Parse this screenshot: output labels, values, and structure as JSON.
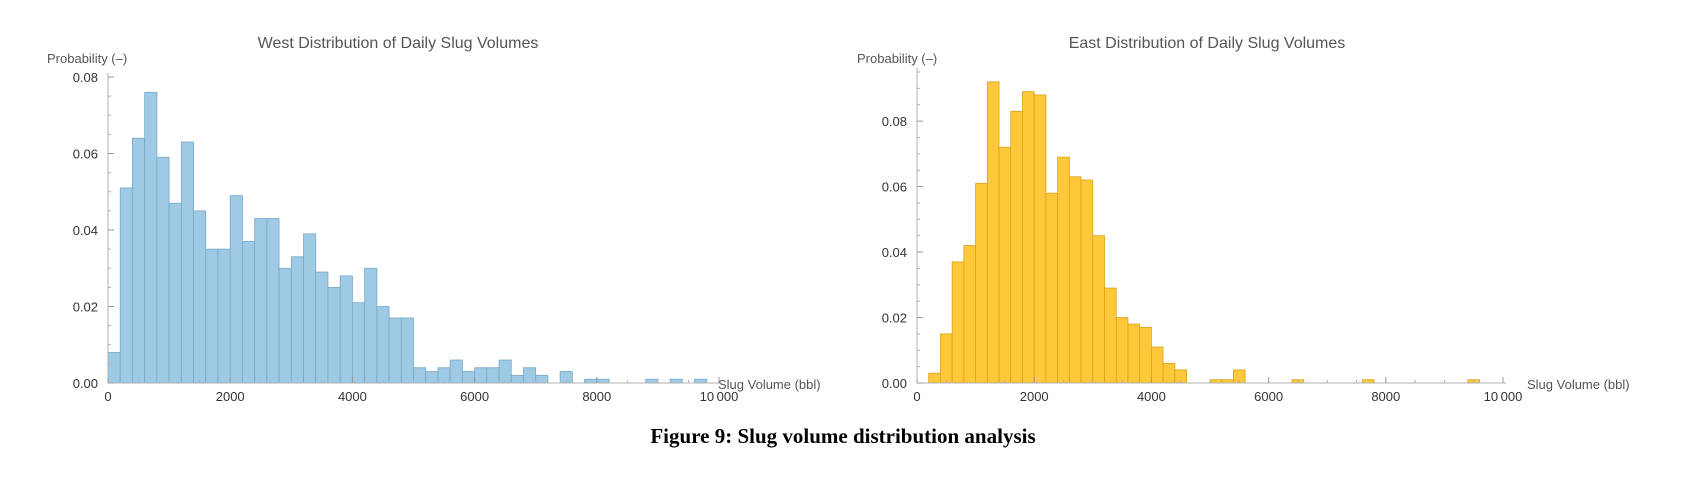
{
  "caption": "Figure 9: Slug volume distribution analysis",
  "chart_data": [
    {
      "type": "bar",
      "subtype": "histogram",
      "title": "West Distribution of Daily Slug Volumes",
      "xlabel": "Slug Volume (bbl)",
      "ylabel": "Probability (–)",
      "xlim": [
        0,
        10000
      ],
      "ylim": [
        0,
        0.08
      ],
      "bin_width": 200,
      "xticks": [
        0,
        2000,
        4000,
        6000,
        8000,
        10000
      ],
      "xtick_labels": [
        "0",
        "2000",
        "4000",
        "6000",
        "8000",
        "10 000"
      ],
      "yticks": [
        0,
        0.02,
        0.04,
        0.06,
        0.08
      ],
      "ytick_labels": [
        "0.00",
        "0.02",
        "0.04",
        "0.06",
        "0.08"
      ],
      "bin_starts": [
        0,
        200,
        400,
        600,
        800,
        1000,
        1200,
        1400,
        1600,
        1800,
        2000,
        2200,
        2400,
        2600,
        2800,
        3000,
        3200,
        3400,
        3600,
        3800,
        4000,
        4200,
        4400,
        4600,
        4800,
        5000,
        5200,
        5400,
        5600,
        5800,
        6000,
        6200,
        6400,
        6600,
        6800,
        7000,
        7400,
        7800,
        8000,
        8800,
        9200,
        9600
      ],
      "values": [
        0.008,
        0.051,
        0.064,
        0.076,
        0.059,
        0.047,
        0.063,
        0.045,
        0.035,
        0.035,
        0.049,
        0.037,
        0.043,
        0.043,
        0.03,
        0.033,
        0.039,
        0.029,
        0.025,
        0.028,
        0.021,
        0.03,
        0.02,
        0.017,
        0.017,
        0.004,
        0.003,
        0.004,
        0.006,
        0.003,
        0.004,
        0.004,
        0.006,
        0.002,
        0.004,
        0.002,
        0.003,
        0.001,
        0.001,
        0.001,
        0.001,
        0.001
      ],
      "grid": false,
      "color": "#9ecae5",
      "edge_color": "#7aa9c6"
    },
    {
      "type": "bar",
      "subtype": "histogram",
      "title": "East Distribution of Daily Slug Volumes",
      "xlabel": "Slug Volume (bbl)",
      "ylabel": "Probability (–)",
      "xlim": [
        0,
        10000
      ],
      "ylim": [
        0,
        0.095
      ],
      "bin_width": 200,
      "xticks": [
        0,
        2000,
        4000,
        6000,
        8000,
        10000
      ],
      "xtick_labels": [
        "0",
        "2000",
        "4000",
        "6000",
        "8000",
        "10 000"
      ],
      "yticks": [
        0,
        0.02,
        0.04,
        0.06,
        0.08
      ],
      "ytick_labels": [
        "0.00",
        "0.02",
        "0.04",
        "0.06",
        "0.08"
      ],
      "bin_starts": [
        200,
        400,
        600,
        800,
        1000,
        1200,
        1400,
        1600,
        1800,
        2000,
        2200,
        2400,
        2600,
        2800,
        3000,
        3200,
        3400,
        3600,
        3800,
        4000,
        4200,
        4400,
        5000,
        5200,
        5400,
        6400,
        7600,
        9400
      ],
      "values": [
        0.003,
        0.015,
        0.037,
        0.042,
        0.061,
        0.092,
        0.072,
        0.083,
        0.089,
        0.088,
        0.058,
        0.069,
        0.063,
        0.062,
        0.045,
        0.029,
        0.02,
        0.018,
        0.017,
        0.011,
        0.006,
        0.004,
        0.001,
        0.001,
        0.004,
        0.001,
        0.001,
        0.001
      ],
      "grid": false,
      "color": "#ffc73a",
      "edge_color": "#d9a21c"
    }
  ]
}
